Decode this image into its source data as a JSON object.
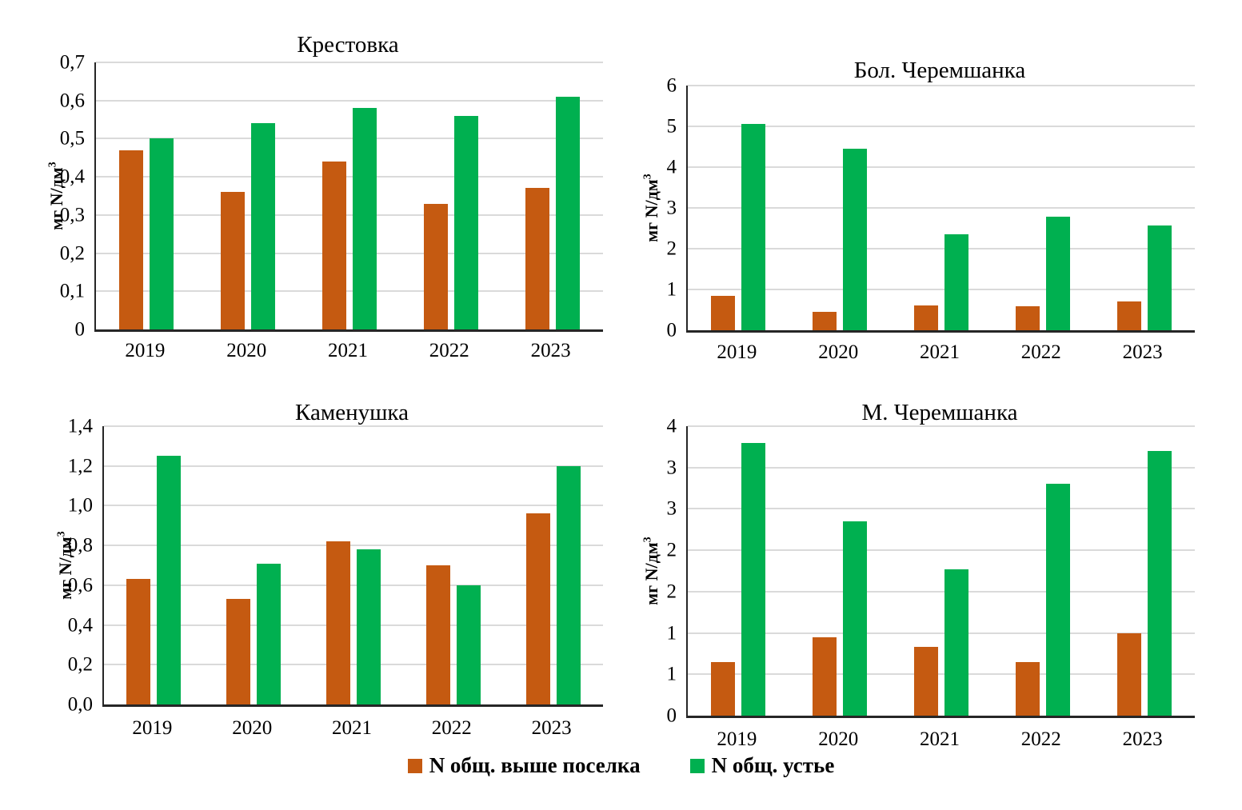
{
  "figure": {
    "description_note": "2x2 panel of grouped bar charts of total nitrogen concentration by year",
    "shared_ylabel": "мг N/дм3"
  },
  "ylabel": {
    "base": "мг N/дм",
    "sup": "3"
  },
  "colors": {
    "above_village": "#C55A11",
    "mouth": "#00B050",
    "gridline": "#DADADA",
    "axis": "#262626"
  },
  "legend": {
    "items": [
      {
        "label": "N общ. выше поселка",
        "color": "#C55A11"
      },
      {
        "label": "N общ. устье",
        "color": "#00B050"
      }
    ]
  },
  "chart_data": [
    {
      "type": "bar",
      "title": "Крестовка",
      "ylabel": "мг N/дм3",
      "categories": [
        "2019",
        "2020",
        "2021",
        "2022",
        "2023"
      ],
      "series": [
        {
          "name": "N общ. выше поселка",
          "color": "#C55A11",
          "values": [
            0.47,
            0.36,
            0.44,
            0.33,
            0.37
          ]
        },
        {
          "name": "N общ. устье",
          "color": "#00B050",
          "values": [
            0.5,
            0.54,
            0.58,
            0.56,
            0.61
          ]
        }
      ],
      "ylim": [
        0,
        0.7
      ],
      "ytick_values": [
        0.7,
        0.6,
        0.5,
        0.4,
        0.3,
        0.2,
        0.1,
        0
      ],
      "ytick_labels": [
        "0,7",
        "0,6",
        "0,5",
        "0,4",
        "0,3",
        "0,2",
        "0,1",
        "0"
      ],
      "grid": true,
      "legend_position": "shared-bottom"
    },
    {
      "type": "bar",
      "title": "Бол. Черемшанка",
      "ylabel": "мг N/дм3",
      "categories": [
        "2019",
        "2020",
        "2021",
        "2022",
        "2023"
      ],
      "series": [
        {
          "name": "N общ. выше поселка",
          "color": "#C55A11",
          "values": [
            0.85,
            0.45,
            0.61,
            0.59,
            0.71
          ]
        },
        {
          "name": "N общ. устье",
          "color": "#00B050",
          "values": [
            5.05,
            4.45,
            2.35,
            2.78,
            2.57
          ]
        }
      ],
      "ylim": [
        0,
        6
      ],
      "ytick_values": [
        6,
        5,
        4,
        3,
        2,
        1,
        0
      ],
      "ytick_labels": [
        "6",
        "5",
        "4",
        "3",
        "2",
        "1",
        "0"
      ],
      "grid": true,
      "legend_position": "shared-bottom"
    },
    {
      "type": "bar",
      "title": "Каменушка",
      "ylabel": "мг N/дм3",
      "categories": [
        "2019",
        "2020",
        "2021",
        "2022",
        "2023"
      ],
      "series": [
        {
          "name": "N общ. выше поселка",
          "color": "#C55A11",
          "values": [
            0.63,
            0.53,
            0.82,
            0.7,
            0.96
          ]
        },
        {
          "name": "N общ. устье",
          "color": "#00B050",
          "values": [
            1.25,
            0.71,
            0.78,
            0.6,
            1.2
          ]
        }
      ],
      "ylim": [
        0,
        1.4
      ],
      "ytick_values": [
        1.4,
        1.2,
        1.0,
        0.8,
        0.6,
        0.4,
        0.2,
        0
      ],
      "ytick_labels": [
        "1,4",
        "1,2",
        "1,0",
        "0,8",
        "0,6",
        "0,4",
        "0,2",
        "0,0"
      ],
      "grid": true,
      "legend_position": "shared-bottom"
    },
    {
      "type": "bar",
      "title": "М. Черемшанка",
      "ylabel": "мг N/дм3",
      "categories": [
        "2019",
        "2020",
        "2021",
        "2022",
        "2023"
      ],
      "series": [
        {
          "name": "N общ. выше поселка",
          "color": "#C55A11",
          "values": [
            0.65,
            0.95,
            0.83,
            0.65,
            1.0
          ]
        },
        {
          "name": "N общ. устье",
          "color": "#00B050",
          "values": [
            3.3,
            2.35,
            1.77,
            2.8,
            3.2
          ]
        }
      ],
      "ylim": [
        0,
        3.5
      ],
      "ytick_values": [
        3.5,
        3.0,
        2.5,
        2.0,
        1.5,
        1.0,
        0.5,
        0
      ],
      "ytick_labels": [
        "4",
        "3",
        "3",
        "2",
        "2",
        "1",
        "1",
        "0"
      ],
      "grid": true,
      "legend_position": "shared-bottom",
      "note_axis": "integer-rounded labels on a 0–3.5 axis with 0.5 steps"
    }
  ]
}
